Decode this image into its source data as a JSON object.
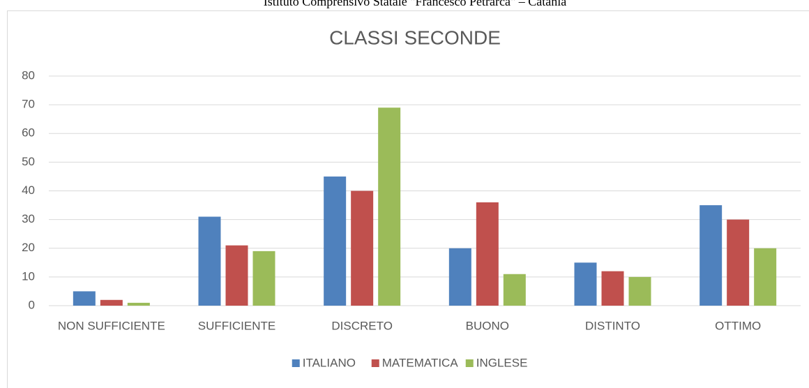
{
  "header": "Istituto Comprensivo Statale \"Francesco Petrarca\" – Catania",
  "chart_data": {
    "type": "bar",
    "title": "CLASSI SECONDE",
    "categories": [
      "NON SUFFICIENTE",
      "SUFFICIENTE",
      "DISCRETO",
      "BUONO",
      "DISTINTO",
      "OTTIMO"
    ],
    "series": [
      {
        "name": "ITALIANO",
        "color": "#4f81bd",
        "values": [
          5,
          31,
          45,
          20,
          15,
          35
        ]
      },
      {
        "name": "MATEMATICA",
        "color": "#c0504d",
        "values": [
          2,
          21,
          40,
          36,
          12,
          30
        ]
      },
      {
        "name": "INGLESE",
        "color": "#9bbb59",
        "values": [
          1,
          19,
          69,
          11,
          10,
          20
        ]
      }
    ],
    "ylim": [
      0,
      80
    ],
    "yticks": [
      0,
      10,
      20,
      30,
      40,
      50,
      60,
      70,
      80
    ],
    "grid": true,
    "legend": "bottom"
  }
}
